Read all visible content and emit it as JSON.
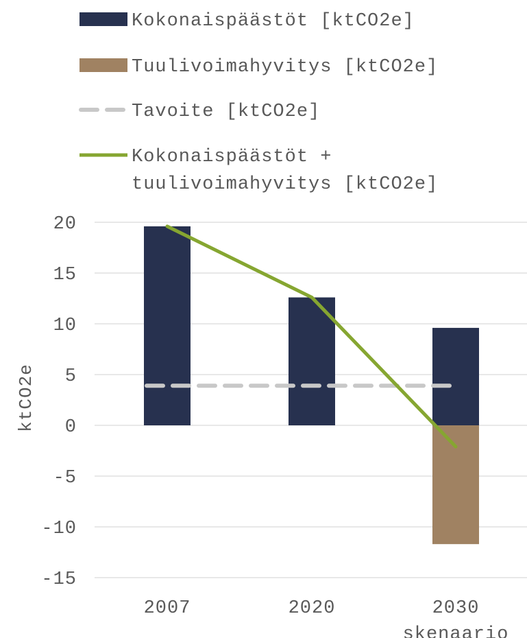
{
  "chart_data": {
    "type": "bar",
    "categories": [
      "2007",
      "2020",
      "2030\nskenaario"
    ],
    "category_labels": [
      [
        "2007"
      ],
      [
        "2020"
      ],
      [
        "2030",
        "skenaario"
      ]
    ],
    "ylabel": "ktCO2e",
    "ylim": [
      -15,
      20
    ],
    "yticks": [
      20,
      15,
      10,
      5,
      0,
      -5,
      -10,
      -15
    ],
    "ytick_labels": [
      "20",
      "15",
      "10",
      "5",
      "0",
      "-5",
      "-10",
      "-15"
    ],
    "grid": true,
    "legend_position": "top",
    "series": [
      {
        "name": "Kokonaispäästöt [ktCO2e]",
        "kind": "bar",
        "color": "#27314f",
        "values": [
          19.6,
          12.6,
          9.6
        ]
      },
      {
        "name": "Tuulivoimahyvitys [ktCO2e]",
        "kind": "bar",
        "color": "#a08262",
        "values": [
          0,
          0,
          -11.7
        ]
      },
      {
        "name": "Tavoite [ktCO2e]",
        "kind": "dashed-line",
        "color": "#c8c8c8",
        "values": [
          3.9,
          3.9,
          3.9
        ]
      },
      {
        "name_lines": [
          "Kokonaispäästöt +",
          "tuulivoimahyvitys [ktCO2e]"
        ],
        "name": "Kokonaispäästöt + tuulivoimahyvitys [ktCO2e]",
        "kind": "line",
        "color": "#86a631",
        "values": [
          19.6,
          12.6,
          -2.1
        ]
      }
    ]
  }
}
